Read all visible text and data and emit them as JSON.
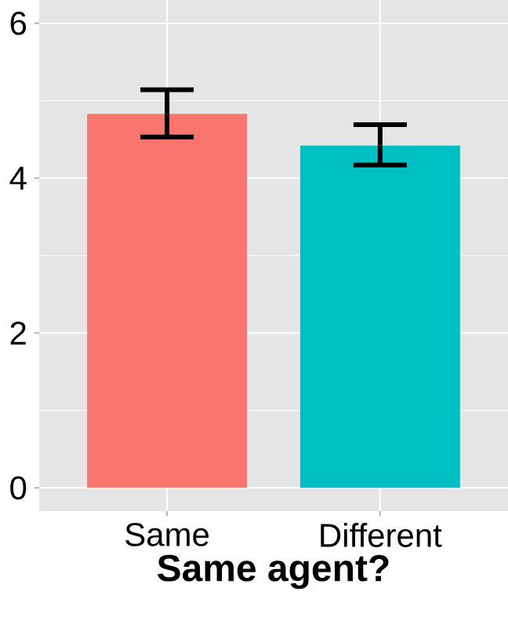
{
  "chart_data": {
    "type": "bar",
    "xlabel": "Same agent?",
    "categories": [
      "Same",
      "Different"
    ],
    "values": [
      4.83,
      4.42
    ],
    "colors": [
      "#f8766d",
      "#00bfc4"
    ],
    "errors": [
      [
        4.53,
        5.14
      ],
      [
        4.17,
        4.69
      ]
    ],
    "ylim": [
      -0.3,
      6.3
    ],
    "yticks": [
      0,
      2,
      4,
      6
    ],
    "grid": true
  }
}
